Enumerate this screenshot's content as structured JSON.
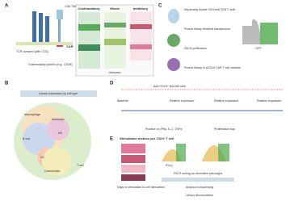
{
  "panels": {
    "a": {
      "label": "A",
      "tcr": "TCR complex (with CD3)",
      "costim": "Costimulatory protein (e.g., CD28)",
      "car": "CAR",
      "cd8": "CD8 TMD",
      "columns": [
        "Costimulatory",
        "Mixed",
        "Inhibitory"
      ],
      "bottom": "Unknown"
    },
    "b": {
      "label": "B",
      "title": "Library expression by cell type",
      "sets": [
        "Macrophage",
        "Monocyte",
        "B cell",
        "NK",
        "DC",
        "Granulocyte",
        "T cell"
      ]
    },
    "c": {
      "label": "C",
      "steps": [
        "Separately isolate CD4 and CD8 T cells",
        "Pooled library lentiviral transduction",
        "FACS purification",
        "Pooled library in αCD19 CAR T cell variants"
      ],
      "axis": "GFP"
    },
    "d": {
      "label": "D",
      "top": "Add CD19+ NALM6 cells",
      "steps": [
        "Baseline",
        "Relative expansion",
        "Relative expansion",
        "Relative expansion"
      ],
      "sorts": [
        "Positive on IFNγ, IL-2, TNFα",
        "Proliferation day"
      ]
    },
    "e": {
      "label": "E",
      "title": "Stimulation metrics per CD4+ T cell",
      "foot": "Days of stimulation to cell stimulation",
      "ifn": "IFN-γ",
      "facs": "FACS sorting on described phenotype",
      "seq": "Amplicon sequencing",
      "decon": "Library deconvolution"
    }
  }
}
